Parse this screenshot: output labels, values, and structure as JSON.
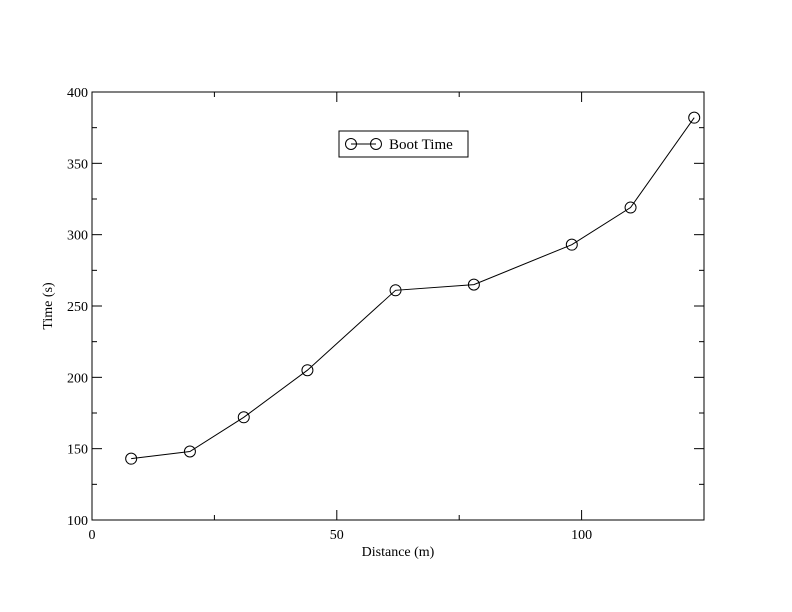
{
  "chart_data": {
    "type": "line",
    "xlabel": "Distance (m)",
    "ylabel": "Time (s)",
    "xlim": [
      0,
      125
    ],
    "ylim": [
      100,
      400
    ],
    "x_major_ticks": [
      0,
      50,
      100
    ],
    "x_minor_step": 25,
    "y_major_ticks": [
      100,
      150,
      200,
      250,
      300,
      350,
      400
    ],
    "y_minor_step": 25,
    "grid": false,
    "legend_position": "top-center",
    "series": [
      {
        "name": "Boot Time",
        "marker": "circle",
        "color": "#000000",
        "x": [
          8,
          20,
          31,
          44,
          62,
          78,
          98,
          110,
          123
        ],
        "y": [
          143,
          148,
          172,
          205,
          261,
          265,
          293,
          319,
          382
        ]
      }
    ]
  }
}
